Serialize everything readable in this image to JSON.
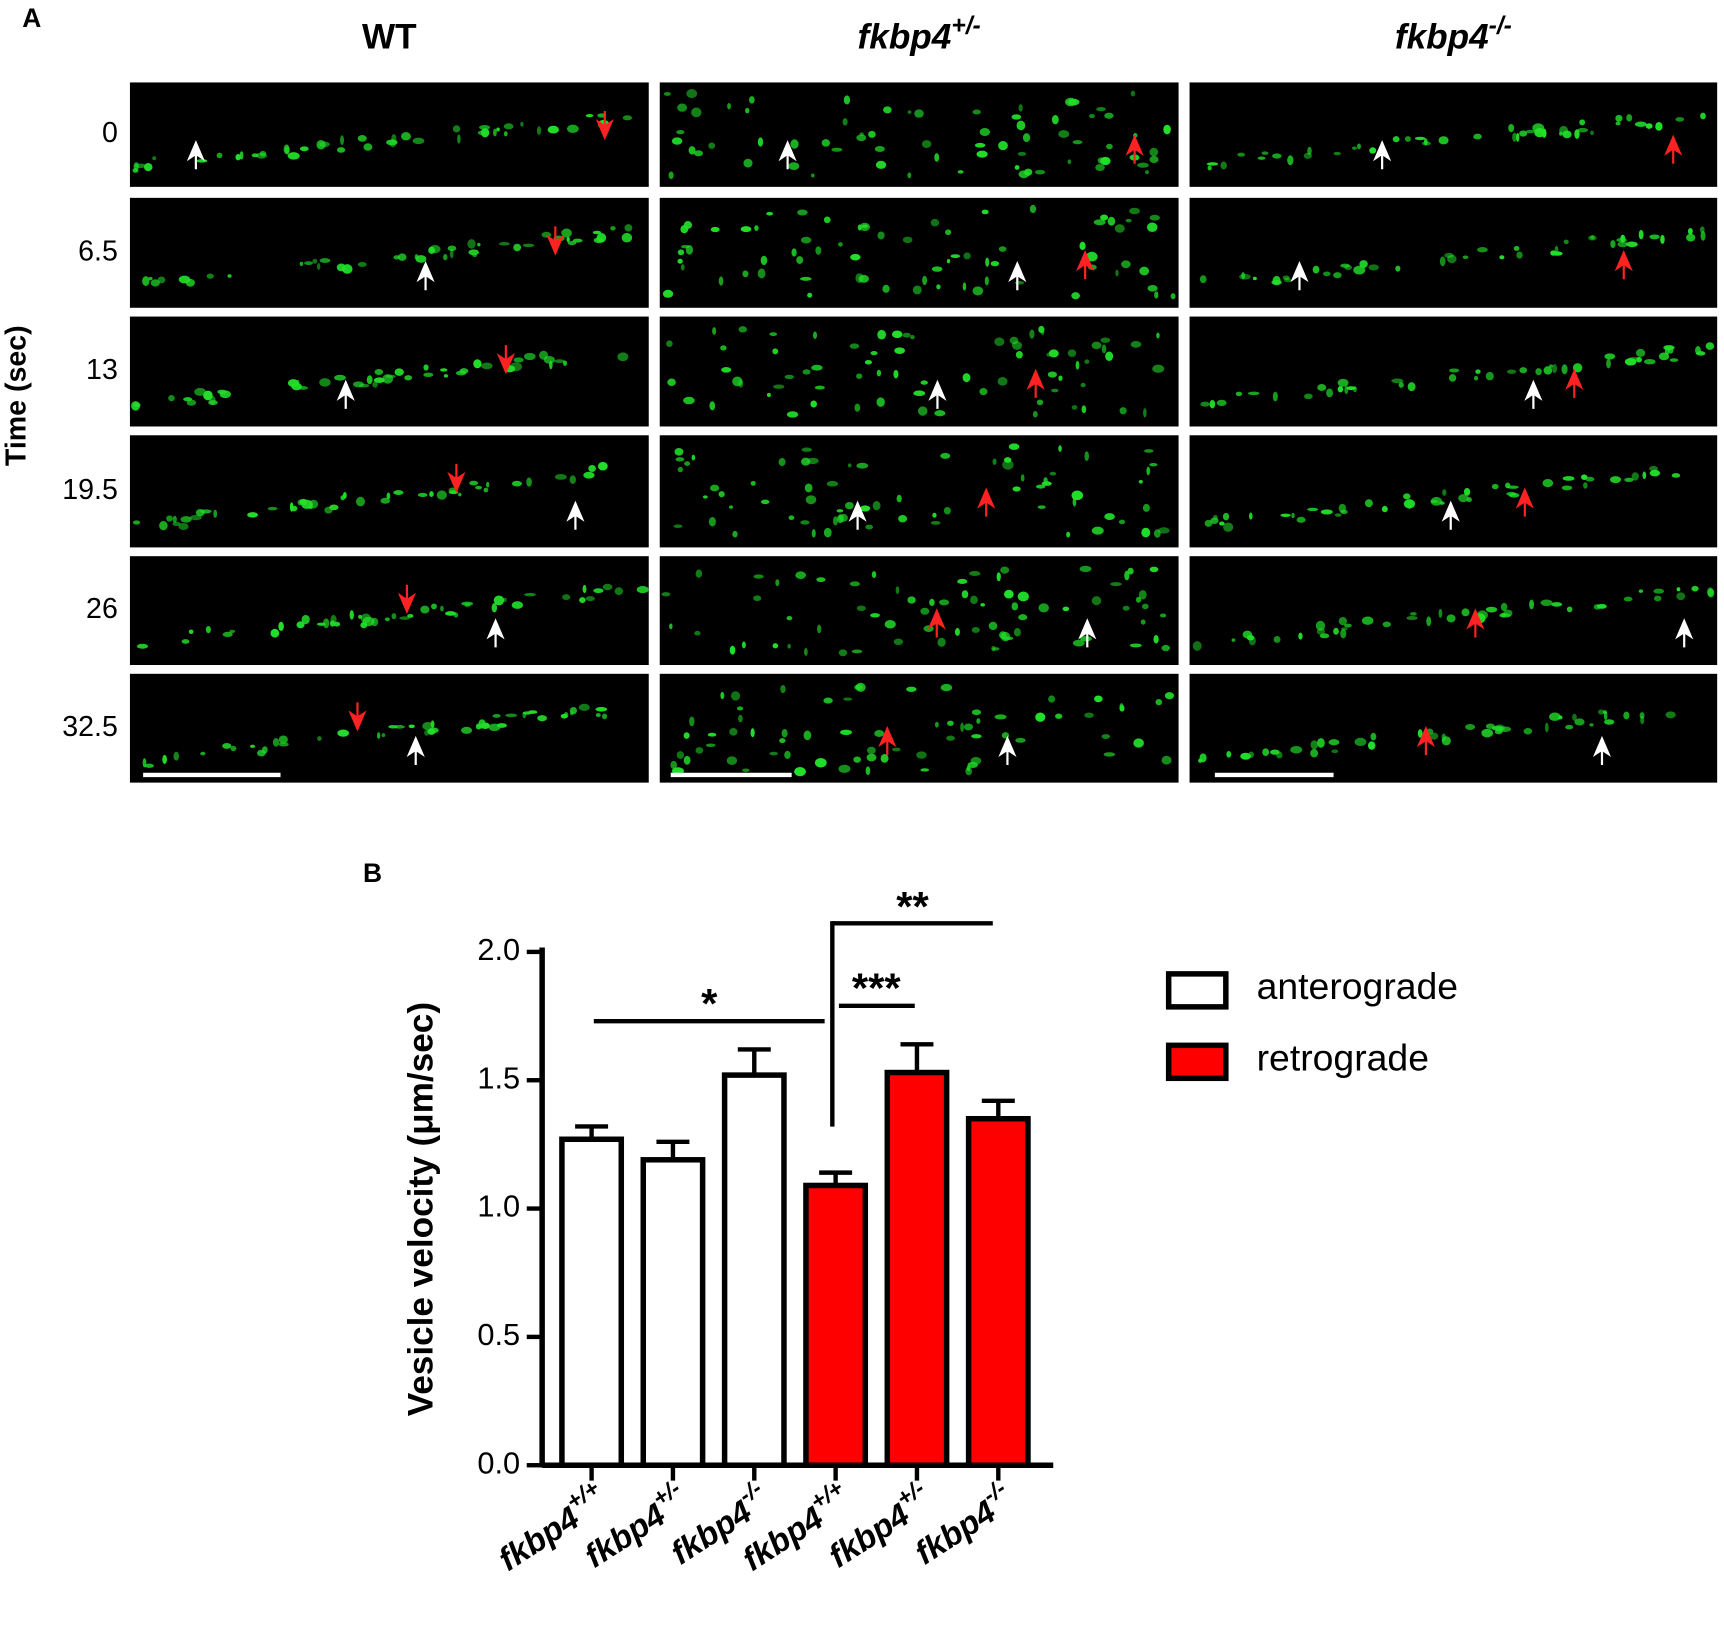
{
  "panel_a": {
    "label": "A",
    "columns": [
      {
        "base": "WT"
      },
      {
        "base": "fkbp4",
        "sup": "+/-"
      },
      {
        "base": "fkbp4",
        "sup": "-/-"
      }
    ],
    "row_axis_label": "Time (sec)",
    "rows": [
      "0",
      "6.5",
      "13",
      "19.5",
      "26",
      "32.5"
    ]
  },
  "chart_data": {
    "type": "bar",
    "label": "B",
    "categories": [
      {
        "base": "fkbp4",
        "sup": "+/+"
      },
      {
        "base": "fkbp4",
        "sup": "+/-"
      },
      {
        "base": "fkbp4",
        "sup": "-/-"
      },
      {
        "base": "fkbp4",
        "sup": "+/+"
      },
      {
        "base": "fkbp4",
        "sup": "+/-"
      },
      {
        "base": "fkbp4",
        "sup": "-/-"
      }
    ],
    "series": [
      {
        "name": "anterograde",
        "color": "#ffffff",
        "values": [
          1.27,
          1.19,
          1.52,
          null,
          null,
          null
        ],
        "errors": [
          0.05,
          0.07,
          0.1,
          null,
          null,
          null
        ]
      },
      {
        "name": "retrograde",
        "color": "#ff0000",
        "values": [
          null,
          null,
          null,
          1.09,
          1.53,
          1.35
        ],
        "errors": [
          null,
          null,
          null,
          0.05,
          0.11,
          0.07
        ]
      }
    ],
    "y_label": "Vesicle velocity (μm/sec)",
    "ylim": [
      0,
      2
    ],
    "yticks": [
      {
        "value": 0,
        "label": "0.0"
      },
      0.5,
      {
        "value": 1,
        "label": "1.0"
      },
      1.5,
      {
        "value": 2,
        "label": "2.0"
      }
    ],
    "annotations": [
      {
        "text": "*"
      },
      {
        "text": "***"
      },
      {
        "text": "**"
      }
    ],
    "legend": "right"
  }
}
